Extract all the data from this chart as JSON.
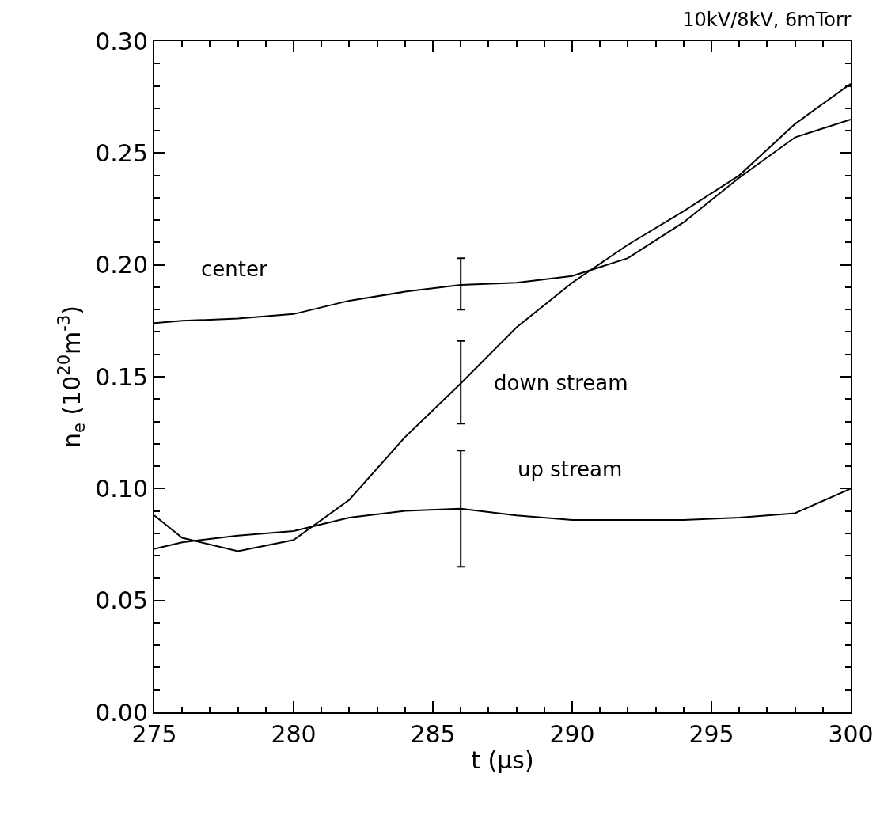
{
  "chart_data": {
    "type": "line",
    "title": "10kV/8kV, 6mTorr",
    "xlabel": "t (μs)",
    "ylabel": "n$_{e}$ (10$^{20}$m$^{-3}$)",
    "x": [
      275,
      276,
      278,
      280,
      282,
      284,
      286,
      288,
      290,
      292,
      294,
      296,
      298,
      300
    ],
    "series": [
      {
        "name": "center",
        "color": "#000000",
        "values": [
          0.174,
          0.175,
          0.176,
          0.178,
          0.184,
          0.188,
          0.191,
          0.192,
          0.195,
          0.203,
          0.219,
          0.239,
          0.257,
          0.265
        ],
        "errors": [
          null,
          null,
          null,
          null,
          null,
          null,
          [
            0.18,
            0.203
          ],
          null,
          null,
          null,
          null,
          null,
          null,
          null
        ]
      },
      {
        "name": "down stream",
        "color": "#000000",
        "values": [
          0.088,
          0.078,
          0.072,
          0.077,
          0.095,
          0.123,
          0.147,
          0.172,
          0.192,
          0.209,
          0.224,
          0.24,
          0.263,
          0.281
        ],
        "errors": [
          null,
          null,
          null,
          null,
          null,
          null,
          [
            0.129,
            0.166
          ],
          null,
          null,
          null,
          null,
          null,
          null,
          null
        ]
      },
      {
        "name": "up stream",
        "color": "#000000",
        "values": [
          0.073,
          0.076,
          0.079,
          0.081,
          0.087,
          0.09,
          0.091,
          0.088,
          0.086,
          0.086,
          0.086,
          0.087,
          0.089,
          0.1
        ],
        "errors": [
          null,
          null,
          null,
          null,
          null,
          null,
          [
            0.065,
            0.117
          ],
          null,
          null,
          null,
          null,
          null,
          null,
          null
        ]
      }
    ],
    "xlim": [
      275,
      300
    ],
    "xticks": [
      275,
      280,
      285,
      290,
      295,
      300
    ],
    "ylim": [
      0,
      0.3
    ],
    "yticks": [
      {
        "value": 0,
        "label": "0.00"
      },
      {
        "value": 0.05,
        "label": "0.05"
      },
      {
        "value": 0.1,
        "label": "0.10"
      },
      {
        "value": 0.15,
        "label": "0.15"
      },
      {
        "value": 0.2,
        "label": "0.20"
      },
      {
        "value": 0.25,
        "label": "0.25"
      },
      {
        "value": 0.3,
        "label": "0.30"
      }
    ],
    "grid": false,
    "legend": false,
    "marker": "none",
    "line_style": "solid"
  }
}
